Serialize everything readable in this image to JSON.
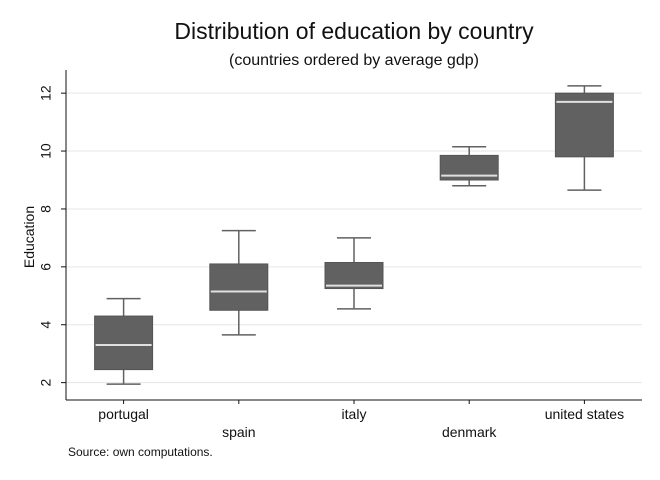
{
  "chart_data": {
    "type": "box",
    "title": "Distribution of education by country",
    "subtitle": "(countries ordered by average gdp)",
    "xlabel": "",
    "ylabel": "Education",
    "ylim": [
      1.4,
      12.8
    ],
    "yticks": [
      2,
      4,
      6,
      8,
      10,
      12
    ],
    "grid": true,
    "box_color": "#616161",
    "median_color": "#e0e0e0",
    "whisker_color": "#616161",
    "categories": [
      "portugal",
      "spain",
      "italy",
      "denmark",
      "united states"
    ],
    "boxes": [
      {
        "name": "portugal",
        "whisker_low": 1.95,
        "q1": 2.45,
        "median": 3.3,
        "q3": 4.3,
        "whisker_high": 4.9
      },
      {
        "name": "spain",
        "whisker_low": 3.65,
        "q1": 4.5,
        "median": 5.15,
        "q3": 6.1,
        "whisker_high": 7.25
      },
      {
        "name": "italy",
        "whisker_low": 4.55,
        "q1": 5.25,
        "median": 5.35,
        "q3": 6.15,
        "whisker_high": 7.0
      },
      {
        "name": "denmark",
        "whisker_low": 8.8,
        "q1": 9.0,
        "median": 9.15,
        "q3": 9.85,
        "whisker_high": 10.15
      },
      {
        "name": "united states",
        "whisker_low": 8.65,
        "q1": 9.8,
        "median": 11.7,
        "q3": 12.0,
        "whisker_high": 12.25
      }
    ],
    "note": "Source: own computations."
  }
}
